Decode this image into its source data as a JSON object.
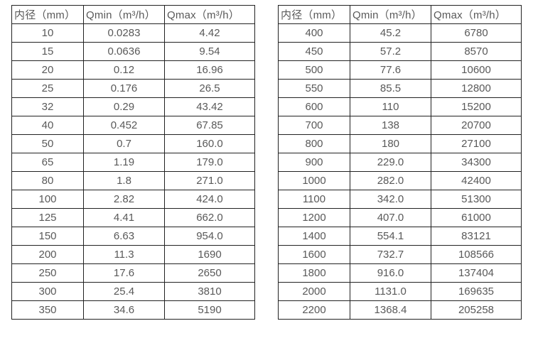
{
  "page": {
    "background_color": "#ffffff",
    "border_color": "#222222",
    "text_color": "#595959"
  },
  "tables": [
    {
      "name": "flow-rate-table-small-diameters",
      "headers": [
        "内径（mm）",
        "Qmin（m³/h）",
        "Qmax（m³/h）"
      ],
      "rows": [
        [
          "10",
          "0.0283",
          "4.42"
        ],
        [
          "15",
          "0.0636",
          "9.54"
        ],
        [
          "20",
          "0.12",
          "16.96"
        ],
        [
          "25",
          "0.176",
          "26.5"
        ],
        [
          "32",
          "0.29",
          "43.42"
        ],
        [
          "40",
          "0.452",
          "67.85"
        ],
        [
          "50",
          "0.7",
          "160.0"
        ],
        [
          "65",
          "1.19",
          "179.0"
        ],
        [
          "80",
          "1.8",
          "271.0"
        ],
        [
          "100",
          "2.82",
          "424.0"
        ],
        [
          "125",
          "4.41",
          "662.0"
        ],
        [
          "150",
          "6.63",
          "954.0"
        ],
        [
          "200",
          "11.3",
          "1690"
        ],
        [
          "250",
          "17.6",
          "2650"
        ],
        [
          "300",
          "25.4",
          "3810"
        ],
        [
          "350",
          "34.6",
          "5190"
        ]
      ]
    },
    {
      "name": "flow-rate-table-large-diameters",
      "headers": [
        "内径（mm）",
        "Qmin（m³/h）",
        "Qmax（m³/h）"
      ],
      "rows": [
        [
          "400",
          "45.2",
          "6780"
        ],
        [
          "450",
          "57.2",
          "8570"
        ],
        [
          "500",
          "77.6",
          "10600"
        ],
        [
          "550",
          "85.5",
          "12800"
        ],
        [
          "600",
          "110",
          "15200"
        ],
        [
          "700",
          "138",
          "20700"
        ],
        [
          "800",
          "180",
          "27100"
        ],
        [
          "900",
          "229.0",
          "34300"
        ],
        [
          "1000",
          "282.0",
          "42400"
        ],
        [
          "1100",
          "342.0",
          "51300"
        ],
        [
          "1200",
          "407.0",
          "61000"
        ],
        [
          "1400",
          "554.1",
          "83121"
        ],
        [
          "1600",
          "732.7",
          "108566"
        ],
        [
          "1800",
          "916.0",
          "137404"
        ],
        [
          "2000",
          "1131.0",
          "169635"
        ],
        [
          "2200",
          "1368.4",
          "205258"
        ]
      ]
    }
  ]
}
